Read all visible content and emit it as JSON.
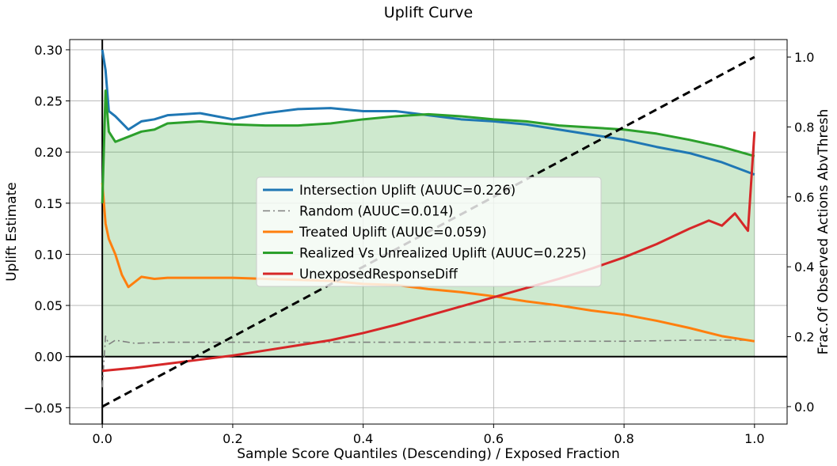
{
  "chart_data": {
    "type": "line",
    "title": "Uplift Curve",
    "xlabel": "Sample Score Quantiles (Descending) / Exposed Fraction",
    "ylabel": "Uplift Estimate",
    "y2label": "Frac.Of Observed Actions AbvThresh",
    "xlim": [
      -0.05,
      1.05
    ],
    "ylim": [
      -0.066,
      0.31
    ],
    "y2lim": [
      -0.05,
      1.05
    ],
    "grid": true,
    "legend_position": "center",
    "x_ticks": [
      "0.0",
      "0.2",
      "0.4",
      "0.6",
      "0.8",
      "1.0"
    ],
    "x_tick_values": [
      0.0,
      0.2,
      0.4,
      0.6,
      0.8,
      1.0
    ],
    "y_ticks": [
      "−0.05",
      "0.00",
      "0.05",
      "0.10",
      "0.15",
      "0.20",
      "0.25",
      "0.30"
    ],
    "y_tick_values": [
      -0.05,
      0.0,
      0.05,
      0.1,
      0.15,
      0.2,
      0.25,
      0.3
    ],
    "y2_ticks": [
      "0.0",
      "0.2",
      "0.4",
      "0.6",
      "0.8",
      "1.0"
    ],
    "y2_tick_values": [
      0.0,
      0.2,
      0.4,
      0.6,
      0.8,
      1.0
    ],
    "series": [
      {
        "name": "Intersection Uplift (AUUC=0.226)",
        "color": "#1f77b4",
        "style": "solid",
        "x": [
          0.0,
          0.005,
          0.01,
          0.02,
          0.04,
          0.06,
          0.08,
          0.1,
          0.15,
          0.2,
          0.25,
          0.3,
          0.35,
          0.4,
          0.45,
          0.5,
          0.55,
          0.6,
          0.65,
          0.7,
          0.75,
          0.8,
          0.85,
          0.9,
          0.95,
          1.0
        ],
        "y": [
          0.3,
          0.28,
          0.24,
          0.235,
          0.222,
          0.23,
          0.232,
          0.236,
          0.238,
          0.232,
          0.238,
          0.242,
          0.243,
          0.24,
          0.24,
          0.236,
          0.232,
          0.23,
          0.227,
          0.222,
          0.217,
          0.212,
          0.205,
          0.199,
          0.19,
          0.178
        ]
      },
      {
        "name": "Random (AUUC=0.014)",
        "color": "#7f7f7f",
        "style": "dashdot",
        "x": [
          0.0,
          0.005,
          0.01,
          0.02,
          0.05,
          0.1,
          0.2,
          0.3,
          0.4,
          0.5,
          0.6,
          0.7,
          0.8,
          0.9,
          1.0
        ],
        "y": [
          -0.03,
          0.02,
          0.012,
          0.016,
          0.013,
          0.014,
          0.014,
          0.014,
          0.014,
          0.014,
          0.014,
          0.015,
          0.015,
          0.016,
          0.016
        ]
      },
      {
        "name": "Treated Uplift (AUUC=0.059)",
        "color": "#ff7f0e",
        "style": "solid",
        "x": [
          0.0,
          0.005,
          0.01,
          0.02,
          0.03,
          0.04,
          0.06,
          0.08,
          0.1,
          0.15,
          0.2,
          0.25,
          0.3,
          0.35,
          0.4,
          0.45,
          0.5,
          0.55,
          0.6,
          0.65,
          0.7,
          0.75,
          0.8,
          0.85,
          0.9,
          0.95,
          1.0
        ],
        "y": [
          0.17,
          0.13,
          0.115,
          0.1,
          0.08,
          0.068,
          0.078,
          0.076,
          0.077,
          0.077,
          0.077,
          0.076,
          0.075,
          0.074,
          0.071,
          0.07,
          0.066,
          0.063,
          0.059,
          0.054,
          0.05,
          0.045,
          0.041,
          0.035,
          0.028,
          0.02,
          0.015
        ]
      },
      {
        "name": "Realized Vs Unrealized Uplift (AUUC=0.225)",
        "color": "#2ca02c",
        "style": "solid",
        "x": [
          0.0,
          0.005,
          0.01,
          0.02,
          0.04,
          0.06,
          0.08,
          0.1,
          0.15,
          0.2,
          0.25,
          0.3,
          0.35,
          0.4,
          0.45,
          0.5,
          0.55,
          0.6,
          0.65,
          0.7,
          0.75,
          0.8,
          0.85,
          0.9,
          0.95,
          1.0
        ],
        "y": [
          0.15,
          0.26,
          0.22,
          0.21,
          0.215,
          0.22,
          0.222,
          0.228,
          0.23,
          0.227,
          0.226,
          0.226,
          0.228,
          0.232,
          0.235,
          0.237,
          0.235,
          0.232,
          0.23,
          0.226,
          0.224,
          0.222,
          0.218,
          0.212,
          0.205,
          0.196
        ]
      },
      {
        "name": "UnexposedResponseDiff",
        "color": "#d62728",
        "style": "solid",
        "x": [
          0.0,
          0.05,
          0.1,
          0.15,
          0.2,
          0.25,
          0.3,
          0.35,
          0.4,
          0.45,
          0.5,
          0.55,
          0.6,
          0.65,
          0.7,
          0.75,
          0.8,
          0.85,
          0.9,
          0.93,
          0.95,
          0.97,
          0.99,
          1.0
        ],
        "y": [
          -0.014,
          -0.011,
          -0.007,
          -0.003,
          0.001,
          0.006,
          0.011,
          0.016,
          0.023,
          0.031,
          0.04,
          0.049,
          0.058,
          0.067,
          0.076,
          0.086,
          0.097,
          0.11,
          0.125,
          0.133,
          0.128,
          0.14,
          0.123,
          0.22
        ]
      }
    ],
    "right_axis_series": [
      {
        "name": "",
        "color": "#000000",
        "style": "dashed",
        "x": [
          0.0,
          1.0
        ],
        "y": [
          0.0,
          1.0
        ]
      }
    ],
    "reference_lines": {
      "horizontal_y": 0.0,
      "vertical_x": 0.0,
      "color": "#000000"
    },
    "fill": {
      "series_index": 3,
      "color": "#2ca02c",
      "opacity": 0.23
    }
  }
}
